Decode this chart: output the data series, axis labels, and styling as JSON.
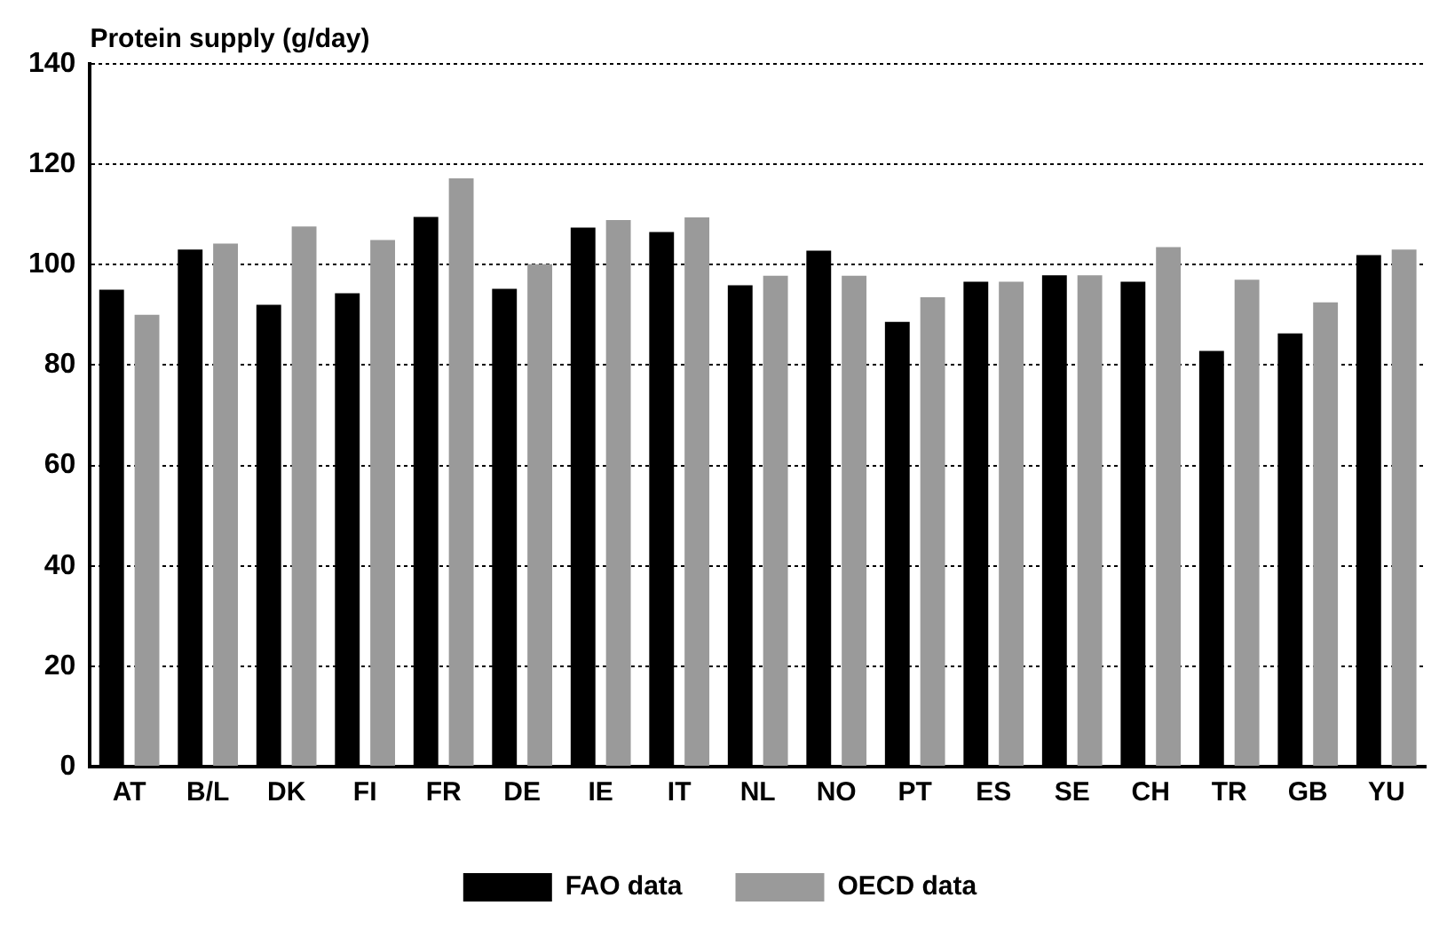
{
  "chart_data": {
    "type": "bar",
    "ylabel": "Protein supply (g/day)",
    "categories": [
      "AT",
      "B/L",
      "DK",
      "FI",
      "FR",
      "DE",
      "IE",
      "IT",
      "NL",
      "NO",
      "PT",
      "ES",
      "SE",
      "CH",
      "TR",
      "GB",
      "YU"
    ],
    "series": [
      {
        "name": "FAO data",
        "color": "#000000",
        "values": [
          95,
          103,
          92,
          94.3,
          109.5,
          95.2,
          107.4,
          106.5,
          95.9,
          102.8,
          88.6,
          96.6,
          97.9,
          96.6,
          82.8,
          86.3,
          101.9
        ]
      },
      {
        "name": "OECD data",
        "color": "#9a9a9a",
        "values": [
          90,
          104.2,
          107.6,
          104.9,
          117.2,
          100.1,
          108.9,
          109.4,
          97.8,
          97.8,
          93.5,
          96.6,
          97.9,
          103.5,
          97,
          92.5,
          103
        ]
      }
    ],
    "ylim": [
      0,
      140
    ],
    "yticks": [
      0,
      20,
      40,
      60,
      80,
      100,
      120,
      140
    ],
    "grid": "y",
    "legend": "bottom"
  }
}
